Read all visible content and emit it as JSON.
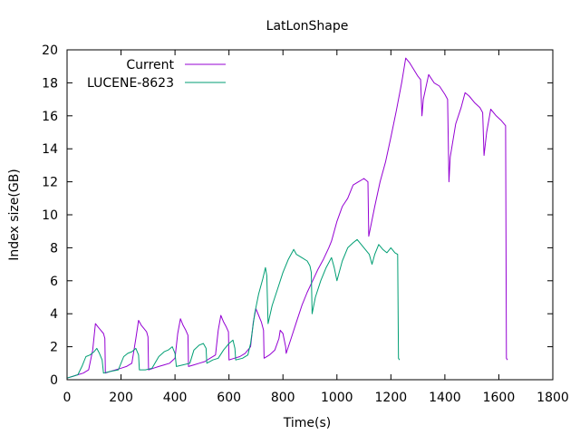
{
  "chart_data": {
    "type": "line",
    "title": "LatLonShape",
    "xlabel": "Time(s)",
    "ylabel": "Index size(GB)",
    "xlim": [
      0,
      1800
    ],
    "ylim": [
      0,
      20
    ],
    "x_ticks": [
      0,
      200,
      400,
      600,
      800,
      1000,
      1200,
      1400,
      1600,
      1800
    ],
    "y_ticks": [
      0,
      2,
      4,
      6,
      8,
      10,
      12,
      14,
      16,
      18,
      20
    ],
    "legend_position": "top-left",
    "series": [
      {
        "name": "Current",
        "color": "#9400d3",
        "points": [
          [
            0,
            0.1
          ],
          [
            20,
            0.2
          ],
          [
            40,
            0.3
          ],
          [
            60,
            0.4
          ],
          [
            80,
            0.6
          ],
          [
            95,
            1.8
          ],
          [
            105,
            3.4
          ],
          [
            115,
            3.2
          ],
          [
            125,
            3.0
          ],
          [
            135,
            2.8
          ],
          [
            140,
            2.5
          ],
          [
            142,
            0.4
          ],
          [
            160,
            0.5
          ],
          [
            180,
            0.6
          ],
          [
            200,
            0.7
          ],
          [
            220,
            0.8
          ],
          [
            240,
            1.0
          ],
          [
            255,
            2.5
          ],
          [
            265,
            3.6
          ],
          [
            275,
            3.3
          ],
          [
            285,
            3.1
          ],
          [
            295,
            2.9
          ],
          [
            300,
            2.6
          ],
          [
            302,
            0.6
          ],
          [
            320,
            0.7
          ],
          [
            340,
            0.8
          ],
          [
            360,
            0.9
          ],
          [
            380,
            1.0
          ],
          [
            400,
            1.3
          ],
          [
            410,
            2.8
          ],
          [
            420,
            3.7
          ],
          [
            430,
            3.3
          ],
          [
            440,
            3.0
          ],
          [
            448,
            2.7
          ],
          [
            450,
            0.8
          ],
          [
            470,
            0.9
          ],
          [
            490,
            1.0
          ],
          [
            510,
            1.1
          ],
          [
            530,
            1.3
          ],
          [
            550,
            1.5
          ],
          [
            560,
            3.0
          ],
          [
            570,
            3.9
          ],
          [
            580,
            3.5
          ],
          [
            590,
            3.2
          ],
          [
            598,
            2.9
          ],
          [
            600,
            1.2
          ],
          [
            620,
            1.3
          ],
          [
            640,
            1.4
          ],
          [
            660,
            1.6
          ],
          [
            680,
            2.0
          ],
          [
            690,
            3.5
          ],
          [
            700,
            4.3
          ],
          [
            710,
            3.9
          ],
          [
            720,
            3.5
          ],
          [
            728,
            3.0
          ],
          [
            730,
            1.3
          ],
          [
            750,
            1.5
          ],
          [
            770,
            1.8
          ],
          [
            785,
            2.5
          ],
          [
            790,
            3.0
          ],
          [
            800,
            2.8
          ],
          [
            810,
            2.0
          ],
          [
            812,
            1.6
          ],
          [
            830,
            2.5
          ],
          [
            850,
            3.5
          ],
          [
            870,
            4.5
          ],
          [
            890,
            5.3
          ],
          [
            910,
            6.0
          ],
          [
            930,
            6.7
          ],
          [
            950,
            7.3
          ],
          [
            970,
            8.0
          ],
          [
            980,
            8.4
          ],
          [
            1000,
            9.6
          ],
          [
            1020,
            10.5
          ],
          [
            1040,
            11.0
          ],
          [
            1060,
            11.8
          ],
          [
            1080,
            12.0
          ],
          [
            1100,
            12.2
          ],
          [
            1115,
            12.0
          ],
          [
            1118,
            8.7
          ],
          [
            1140,
            10.5
          ],
          [
            1160,
            12.0
          ],
          [
            1180,
            13.2
          ],
          [
            1200,
            14.7
          ],
          [
            1220,
            16.3
          ],
          [
            1240,
            18.0
          ],
          [
            1255,
            19.5
          ],
          [
            1270,
            19.2
          ],
          [
            1285,
            18.8
          ],
          [
            1300,
            18.4
          ],
          [
            1310,
            18.2
          ],
          [
            1315,
            16.0
          ],
          [
            1320,
            17.0
          ],
          [
            1340,
            18.5
          ],
          [
            1360,
            18.0
          ],
          [
            1380,
            17.8
          ],
          [
            1400,
            17.3
          ],
          [
            1410,
            17.0
          ],
          [
            1415,
            12.0
          ],
          [
            1420,
            13.5
          ],
          [
            1440,
            15.5
          ],
          [
            1460,
            16.5
          ],
          [
            1475,
            17.4
          ],
          [
            1490,
            17.2
          ],
          [
            1510,
            16.8
          ],
          [
            1530,
            16.5
          ],
          [
            1540,
            16.2
          ],
          [
            1545,
            13.6
          ],
          [
            1555,
            15.0
          ],
          [
            1570,
            16.4
          ],
          [
            1590,
            16.0
          ],
          [
            1610,
            15.7
          ],
          [
            1625,
            15.4
          ],
          [
            1628,
            1.3
          ],
          [
            1632,
            1.2
          ]
        ]
      },
      {
        "name": "LUCENE-8623",
        "color": "#009e73",
        "points": [
          [
            0,
            0.1
          ],
          [
            20,
            0.2
          ],
          [
            40,
            0.3
          ],
          [
            55,
            0.8
          ],
          [
            70,
            1.4
          ],
          [
            85,
            1.5
          ],
          [
            100,
            1.7
          ],
          [
            110,
            1.9
          ],
          [
            120,
            1.6
          ],
          [
            130,
            1.2
          ],
          [
            135,
            0.4
          ],
          [
            160,
            0.5
          ],
          [
            190,
            0.6
          ],
          [
            210,
            1.4
          ],
          [
            225,
            1.6
          ],
          [
            240,
            1.7
          ],
          [
            255,
            1.9
          ],
          [
            265,
            1.5
          ],
          [
            268,
            0.6
          ],
          [
            290,
            0.6
          ],
          [
            315,
            0.7
          ],
          [
            340,
            1.4
          ],
          [
            360,
            1.7
          ],
          [
            375,
            1.8
          ],
          [
            390,
            2.0
          ],
          [
            400,
            1.6
          ],
          [
            405,
            0.8
          ],
          [
            430,
            0.9
          ],
          [
            455,
            1.0
          ],
          [
            470,
            1.8
          ],
          [
            490,
            2.1
          ],
          [
            505,
            2.2
          ],
          [
            515,
            1.9
          ],
          [
            518,
            1.0
          ],
          [
            540,
            1.2
          ],
          [
            560,
            1.3
          ],
          [
            580,
            1.8
          ],
          [
            600,
            2.2
          ],
          [
            615,
            2.4
          ],
          [
            622,
            1.9
          ],
          [
            625,
            1.2
          ],
          [
            650,
            1.3
          ],
          [
            670,
            1.5
          ],
          [
            680,
            2.2
          ],
          [
            695,
            4.0
          ],
          [
            710,
            5.2
          ],
          [
            725,
            6.1
          ],
          [
            735,
            6.8
          ],
          [
            740,
            6.3
          ],
          [
            745,
            3.4
          ],
          [
            760,
            4.5
          ],
          [
            780,
            5.5
          ],
          [
            800,
            6.5
          ],
          [
            820,
            7.3
          ],
          [
            840,
            7.9
          ],
          [
            850,
            7.6
          ],
          [
            870,
            7.4
          ],
          [
            890,
            7.2
          ],
          [
            900,
            6.9
          ],
          [
            905,
            6.5
          ],
          [
            908,
            4.0
          ],
          [
            920,
            5.0
          ],
          [
            940,
            6.0
          ],
          [
            960,
            6.8
          ],
          [
            980,
            7.4
          ],
          [
            990,
            6.8
          ],
          [
            1000,
            6.0
          ],
          [
            1020,
            7.2
          ],
          [
            1040,
            8.0
          ],
          [
            1060,
            8.3
          ],
          [
            1075,
            8.5
          ],
          [
            1090,
            8.2
          ],
          [
            1105,
            7.9
          ],
          [
            1120,
            7.6
          ],
          [
            1130,
            7.0
          ],
          [
            1140,
            7.6
          ],
          [
            1155,
            8.2
          ],
          [
            1170,
            7.9
          ],
          [
            1185,
            7.7
          ],
          [
            1200,
            8.0
          ],
          [
            1215,
            7.7
          ],
          [
            1225,
            7.6
          ],
          [
            1228,
            1.3
          ],
          [
            1232,
            1.2
          ]
        ]
      }
    ]
  }
}
